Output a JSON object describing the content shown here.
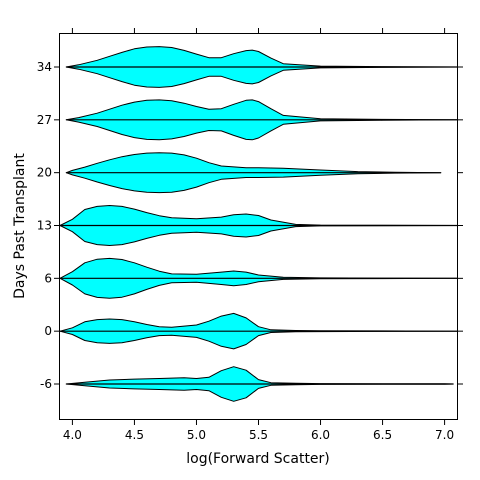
{
  "chart_data": {
    "type": "violin",
    "xlabel": "log(Forward Scatter)",
    "ylabel": "Days Past Transplant",
    "xlim": [
      3.9,
      7.1
    ],
    "x_ticks": [
      "4.0",
      "4.5",
      "5.0",
      "5.5",
      "6.0",
      "6.5",
      "7.0"
    ],
    "fill_color": "#00ffff",
    "outline_color": "#000000",
    "grid": false,
    "categories": [
      "-6",
      "0",
      "6",
      "13",
      "20",
      "27",
      "34"
    ],
    "series": [
      {
        "name": "-6",
        "x": [
          3.95,
          4.1,
          4.3,
          4.5,
          4.7,
          4.9,
          5.0,
          5.1,
          5.2,
          5.3,
          5.4,
          5.5,
          5.6,
          5.8,
          6.0,
          6.5,
          7.0,
          7.07
        ],
        "density": [
          0.0,
          0.08,
          0.18,
          0.22,
          0.25,
          0.28,
          0.25,
          0.3,
          0.6,
          0.78,
          0.62,
          0.2,
          0.06,
          0.03,
          0.02,
          0.01,
          0.01,
          0.0
        ]
      },
      {
        "name": "0",
        "x": [
          3.9,
          4.0,
          4.1,
          4.2,
          4.3,
          4.4,
          4.5,
          4.6,
          4.7,
          4.8,
          5.0,
          5.1,
          5.2,
          5.3,
          5.4,
          5.5,
          5.6,
          5.8,
          6.0,
          6.5,
          7.1
        ],
        "density": [
          0.0,
          0.15,
          0.42,
          0.52,
          0.55,
          0.52,
          0.42,
          0.3,
          0.2,
          0.18,
          0.28,
          0.45,
          0.68,
          0.8,
          0.6,
          0.2,
          0.06,
          0.03,
          0.02,
          0.01,
          0.0
        ]
      },
      {
        "name": "6",
        "x": [
          3.9,
          4.0,
          4.1,
          4.2,
          4.3,
          4.4,
          4.5,
          4.6,
          4.7,
          4.8,
          5.0,
          5.2,
          5.3,
          5.4,
          5.5,
          5.7,
          6.0,
          6.5,
          7.1
        ],
        "density": [
          0.0,
          0.3,
          0.7,
          0.86,
          0.9,
          0.85,
          0.7,
          0.5,
          0.32,
          0.2,
          0.18,
          0.28,
          0.33,
          0.28,
          0.15,
          0.05,
          0.02,
          0.01,
          0.0
        ]
      },
      {
        "name": "13",
        "x": [
          3.9,
          4.0,
          4.1,
          4.2,
          4.3,
          4.4,
          4.5,
          4.6,
          4.7,
          4.8,
          5.0,
          5.2,
          5.3,
          5.4,
          5.5,
          5.6,
          5.8,
          6.0,
          6.5,
          7.1
        ],
        "density": [
          0.0,
          0.28,
          0.72,
          0.86,
          0.9,
          0.86,
          0.74,
          0.58,
          0.44,
          0.35,
          0.3,
          0.38,
          0.48,
          0.52,
          0.45,
          0.25,
          0.05,
          0.02,
          0.01,
          0.0
        ]
      },
      {
        "name": "20",
        "x": [
          3.95,
          4.0,
          4.1,
          4.2,
          4.3,
          4.4,
          4.5,
          4.6,
          4.7,
          4.8,
          4.9,
          5.0,
          5.1,
          5.2,
          5.4,
          5.5,
          5.7,
          6.0,
          6.3,
          6.6,
          6.97
        ],
        "density": [
          0.0,
          0.1,
          0.25,
          0.42,
          0.58,
          0.72,
          0.82,
          0.88,
          0.9,
          0.88,
          0.8,
          0.65,
          0.45,
          0.3,
          0.22,
          0.22,
          0.2,
          0.12,
          0.05,
          0.02,
          0.0
        ]
      },
      {
        "name": "27",
        "x": [
          3.95,
          4.05,
          4.2,
          4.3,
          4.4,
          4.5,
          4.6,
          4.7,
          4.8,
          4.9,
          5.0,
          5.1,
          5.2,
          5.3,
          5.4,
          5.45,
          5.5,
          5.6,
          5.7,
          6.0,
          6.5,
          7.1
        ],
        "density": [
          0.0,
          0.1,
          0.3,
          0.48,
          0.66,
          0.8,
          0.88,
          0.9,
          0.86,
          0.75,
          0.6,
          0.48,
          0.5,
          0.7,
          0.88,
          0.9,
          0.82,
          0.5,
          0.2,
          0.05,
          0.02,
          0.0
        ]
      },
      {
        "name": "34",
        "x": [
          3.95,
          4.05,
          4.2,
          4.3,
          4.4,
          4.5,
          4.6,
          4.7,
          4.8,
          4.9,
          5.0,
          5.1,
          5.2,
          5.3,
          5.4,
          5.45,
          5.5,
          5.6,
          5.7,
          6.0,
          6.5,
          7.1
        ],
        "density": [
          0.0,
          0.1,
          0.3,
          0.48,
          0.66,
          0.82,
          0.9,
          0.92,
          0.88,
          0.75,
          0.58,
          0.42,
          0.42,
          0.6,
          0.74,
          0.76,
          0.7,
          0.4,
          0.15,
          0.04,
          0.02,
          0.0
        ]
      }
    ]
  }
}
